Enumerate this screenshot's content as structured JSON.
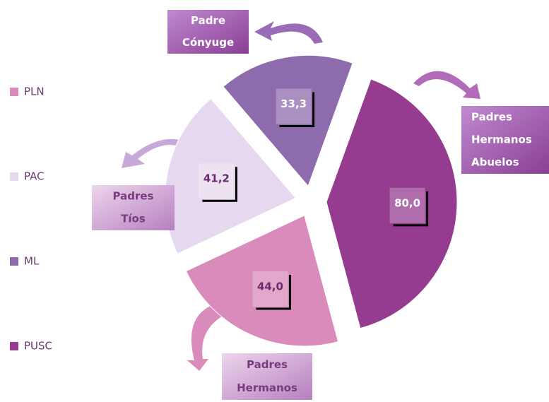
{
  "chart_data": {
    "type": "pie",
    "categories": [
      "PLN",
      "PAC",
      "ML",
      "PUSC"
    ],
    "values": [
      44.0,
      41.2,
      33.3,
      80.0
    ],
    "value_labels": [
      "44,0",
      "41,2",
      "33,3",
      "80,0"
    ],
    "colors": [
      "#d98bbb",
      "#e6d8ee",
      "#8e6bac",
      "#963c90"
    ],
    "annotations": [
      [
        "Padres",
        "Hermanos"
      ],
      [
        "Padres",
        "Tíos"
      ],
      [
        "Padre",
        "Cónyuge"
      ],
      [
        "Padres",
        "Hermanos",
        "Abuelos"
      ]
    ],
    "legend": "left"
  }
}
